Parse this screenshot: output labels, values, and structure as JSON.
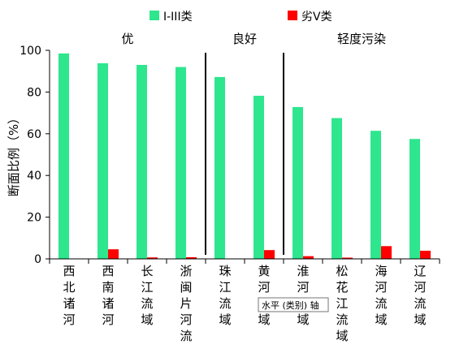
{
  "chart_data": {
    "type": "bar",
    "title": "",
    "xlabel": "",
    "ylabel": "断面比例（%）",
    "ylim": [
      0,
      100
    ],
    "yticks": [
      0,
      20,
      40,
      60,
      80,
      100
    ],
    "grid": false,
    "legend_position": "top",
    "categories": [
      "西北诸河",
      "西南诸河",
      "长江流域",
      "浙闽片河流",
      "珠江流域",
      "黄河流域",
      "淮河流域",
      "松花江流域",
      "海河流域",
      "辽河流域"
    ],
    "series": [
      {
        "name": "I-III类",
        "color": "#2ee68e",
        "values": [
          98.5,
          93.8,
          93.0,
          92.0,
          87.2,
          78.2,
          72.8,
          67.5,
          61.4,
          57.5
        ]
      },
      {
        "name": "劣V类",
        "color": "#ff0000",
        "values": [
          0,
          4.6,
          0.7,
          0.8,
          0,
          4.2,
          1.3,
          0.6,
          6.1,
          3.9
        ]
      }
    ],
    "groups": [
      {
        "label": "优",
        "from": 0,
        "to": 3
      },
      {
        "label": "良好",
        "from": 4,
        "to": 5
      },
      {
        "label": "轻度污染",
        "from": 6,
        "to": 9
      }
    ],
    "tooltip": "水平 (类别) 轴"
  }
}
